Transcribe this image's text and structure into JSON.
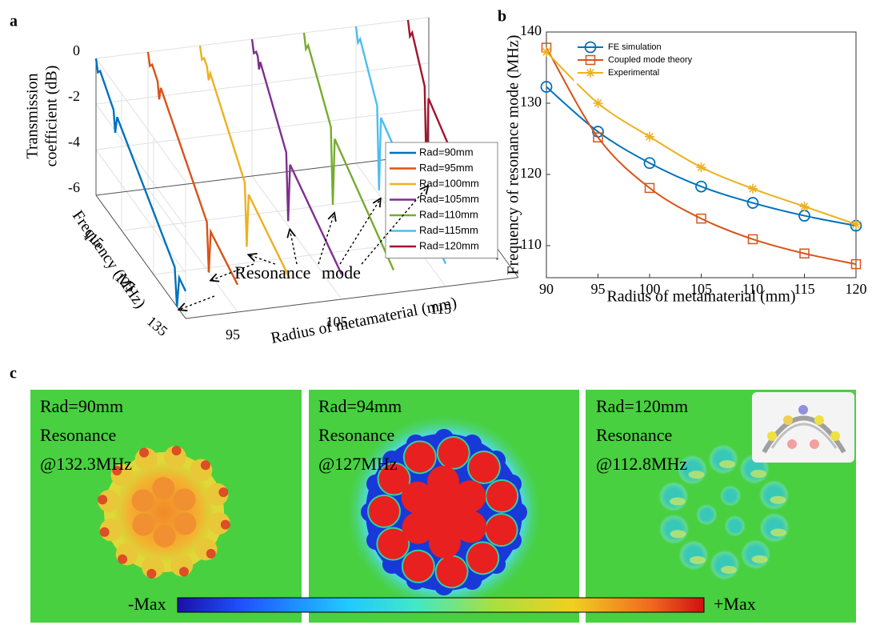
{
  "panel_labels": [
    "a",
    "b",
    "c"
  ],
  "chart_data": [
    {
      "type": "waterfall3d",
      "zlabel": [
        "Transmission",
        "coefficient (dB)"
      ],
      "ylabel": "Frequency (MHz)",
      "xlabel": "Radius of metamaterial (mm)",
      "annotation": "Resonance mode",
      "xlim": [
        90,
        122
      ],
      "xticks": [
        95,
        105,
        115
      ],
      "ylim": [
        107,
        135
      ],
      "yticks": [
        115,
        125,
        135
      ],
      "zlim": [
        -6,
        0
      ],
      "zticks": [
        0,
        -2,
        -4,
        -6
      ],
      "grid": true,
      "series": [
        {
          "name": "Rad=90mm",
          "color": "#0072bd",
          "radius": 90,
          "x": [
            107,
            107.6,
            108.3,
            112.5,
            113,
            113.6,
            131.6,
            132.3,
            133,
            135
          ],
          "values": [
            0,
            -0.5,
            -0.3,
            -1.2,
            -2.1,
            -1.3,
            -4.4,
            -6,
            -4.6,
            -4.8
          ]
        },
        {
          "name": "Rad=95mm",
          "color": "#d95319",
          "radius": 95,
          "x": [
            107,
            107.6,
            108.3,
            110,
            110.5,
            111,
            125.4,
            126,
            126.6,
            135
          ],
          "values": [
            0,
            -0.5,
            -0.3,
            -0.7,
            -1.4,
            -0.8,
            -3.9,
            -6,
            -4.1,
            -4.8
          ]
        },
        {
          "name": "Rad=100mm",
          "color": "#edb120",
          "radius": 100,
          "x": [
            107,
            107.6,
            108.3,
            109.2,
            109.7,
            110.2,
            121,
            121.6,
            122.2,
            135
          ],
          "values": [
            0,
            -0.5,
            -0.3,
            -0.5,
            -1,
            -0.6,
            -3.3,
            -6,
            -3.6,
            -4.8
          ]
        },
        {
          "name": "Rad=105mm",
          "color": "#7e2f8e",
          "radius": 105,
          "x": [
            107,
            107.6,
            108.3,
            108.8,
            109.2,
            109.6,
            117.7,
            118.3,
            118.9,
            135
          ],
          "values": [
            0,
            -0.5,
            -0.3,
            -0.4,
            -0.9,
            -0.5,
            -2.9,
            -5.8,
            -3.2,
            -4.9
          ]
        },
        {
          "name": "Rad=110mm",
          "color": "#77ac30",
          "radius": 110,
          "x": [
            107,
            107.6,
            108.3,
            115.4,
            116,
            116.6,
            135
          ],
          "values": [
            0,
            -0.6,
            -0.3,
            -2.5,
            -5.8,
            -2.8,
            -5
          ]
        },
        {
          "name": "Rad=115mm",
          "color": "#4dbeee",
          "radius": 115,
          "x": [
            107,
            107.6,
            108.3,
            113.6,
            114.2,
            114.8,
            135
          ],
          "values": [
            0,
            -0.6,
            -0.3,
            -2.2,
            -5.8,
            -2.5,
            -5
          ]
        },
        {
          "name": "Rad=120mm",
          "color": "#a2142f",
          "radius": 120,
          "x": [
            107,
            107.6,
            108.3,
            112.2,
            112.8,
            113.4,
            135
          ],
          "values": [
            0,
            -0.6,
            -0.3,
            -1.9,
            -5.8,
            -2.2,
            -5.1
          ]
        }
      ]
    },
    {
      "type": "line",
      "xlabel": "Radius of metamaterial (mm)",
      "ylabel": "Frequency of resonance mode (MHz)",
      "x": [
        90,
        95,
        100,
        105,
        110,
        115,
        120
      ],
      "xlim": [
        90,
        120
      ],
      "xticks": [
        90,
        95,
        100,
        105,
        110,
        115,
        120
      ],
      "ylim": [
        105.5,
        140
      ],
      "yticks": [
        110,
        120,
        130,
        140
      ],
      "legend": "upper right",
      "series": [
        {
          "name": "FE simulation",
          "color": "#0072bd",
          "marker": "circle",
          "values": [
            132.3,
            126,
            121.6,
            118.3,
            116,
            114.2,
            112.8
          ]
        },
        {
          "name": "Coupled mode theory",
          "color": "#d95319",
          "marker": "square",
          "values": [
            137.8,
            125.2,
            118.1,
            113.8,
            110.9,
            108.9,
            107.4
          ]
        },
        {
          "name": "Experimental",
          "color": "#edb120",
          "marker": "asterisk",
          "values": [
            137.2,
            130,
            125.3,
            121,
            118,
            115.5,
            113
          ]
        }
      ]
    }
  ],
  "field_maps": {
    "panels": [
      {
        "lines": [
          "Rad=90mm",
          "Resonance",
          "@132.3MHz"
        ]
      },
      {
        "lines": [
          "Rad=94mm",
          "Resonance",
          "@127MHz"
        ]
      },
      {
        "lines": [
          "Rad=120mm",
          "Resonance",
          "@112.8MHz"
        ]
      }
    ],
    "colorbar": {
      "min_label": "-Max",
      "max_label": "+Max"
    }
  }
}
